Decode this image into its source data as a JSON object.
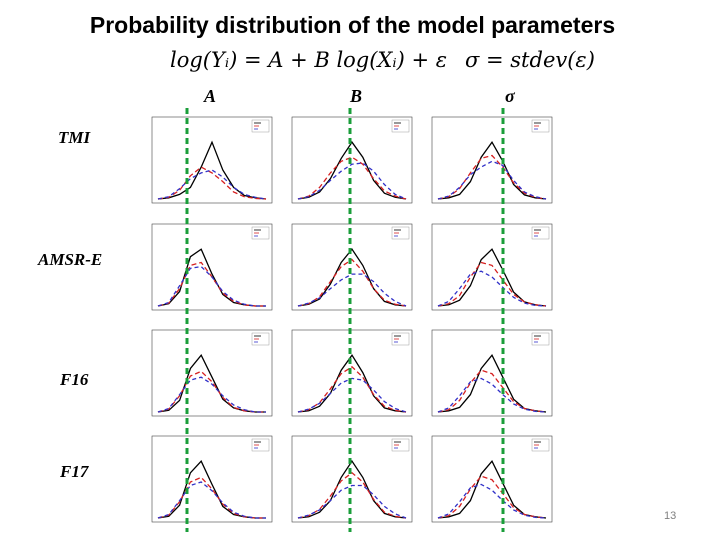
{
  "title": "Probability distribution of the model parameters",
  "formulas": {
    "model": "log(Yᵢ) = A + B log(Xᵢ) + ε",
    "sigma": "σ = stdev(ε)"
  },
  "columns": [
    "A",
    "B",
    "σ"
  ],
  "rows": [
    "TMI",
    "AMSR-E",
    "F16",
    "F17"
  ],
  "page_number": "13",
  "colors": {
    "series_black": "#000000",
    "series_red": "#d62020",
    "series_blue": "#3030c8",
    "reference_line": "#1a9e3a",
    "axis": "#444444"
  },
  "chart_data": {
    "type": "line",
    "note_layout": "4 rows x 3 columns of small distribution plots; each plot shows three density curves (black, red dashed, blue dashed); dashed green vertical line marks reference value across each column",
    "x": [
      0.0,
      0.1,
      0.2,
      0.3,
      0.4,
      0.5,
      0.6,
      0.7,
      0.8,
      0.9,
      1.0
    ],
    "panels": [
      {
        "row": "TMI",
        "column": "A",
        "series": [
          {
            "color": "black",
            "values": [
              0,
              0.02,
              0.08,
              0.2,
              0.55,
              0.98,
              0.5,
              0.2,
              0.06,
              0.02,
              0
            ]
          },
          {
            "color": "red",
            "values": [
              0,
              0.03,
              0.15,
              0.4,
              0.55,
              0.45,
              0.3,
              0.12,
              0.04,
              0.01,
              0
            ]
          },
          {
            "color": "blue",
            "values": [
              0,
              0.04,
              0.18,
              0.35,
              0.45,
              0.5,
              0.38,
              0.2,
              0.08,
              0.03,
              0
            ]
          }
        ]
      },
      {
        "row": "TMI",
        "column": "B",
        "series": [
          {
            "color": "black",
            "values": [
              0,
              0.03,
              0.12,
              0.35,
              0.7,
              0.98,
              0.72,
              0.32,
              0.1,
              0.03,
              0
            ]
          },
          {
            "color": "red",
            "values": [
              0,
              0.05,
              0.2,
              0.45,
              0.65,
              0.72,
              0.6,
              0.35,
              0.14,
              0.05,
              0
            ]
          },
          {
            "color": "blue",
            "values": [
              0,
              0.04,
              0.15,
              0.32,
              0.48,
              0.6,
              0.62,
              0.48,
              0.25,
              0.08,
              0
            ]
          }
        ]
      },
      {
        "row": "TMI",
        "column": "σ",
        "series": [
          {
            "color": "black",
            "values": [
              0,
              0.02,
              0.08,
              0.3,
              0.72,
              0.98,
              0.65,
              0.25,
              0.07,
              0.02,
              0
            ]
          },
          {
            "color": "red",
            "values": [
              0,
              0.04,
              0.18,
              0.45,
              0.7,
              0.75,
              0.55,
              0.28,
              0.1,
              0.03,
              0
            ]
          },
          {
            "color": "blue",
            "values": [
              0,
              0.05,
              0.2,
              0.42,
              0.55,
              0.65,
              0.58,
              0.32,
              0.12,
              0.04,
              0
            ]
          }
        ]
      },
      {
        "row": "AMSR-E",
        "column": "A",
        "series": [
          {
            "color": "black",
            "values": [
              0,
              0.04,
              0.25,
              0.85,
              0.98,
              0.55,
              0.2,
              0.06,
              0.02,
              0,
              0
            ]
          },
          {
            "color": "red",
            "values": [
              0,
              0.05,
              0.3,
              0.7,
              0.75,
              0.5,
              0.22,
              0.08,
              0.02,
              0,
              0
            ]
          },
          {
            "color": "blue",
            "values": [
              0,
              0.06,
              0.35,
              0.65,
              0.68,
              0.5,
              0.25,
              0.1,
              0.03,
              0,
              0
            ]
          }
        ]
      },
      {
        "row": "AMSR-E",
        "column": "B",
        "series": [
          {
            "color": "black",
            "values": [
              0,
              0.03,
              0.12,
              0.38,
              0.75,
              0.98,
              0.7,
              0.3,
              0.08,
              0.02,
              0
            ]
          },
          {
            "color": "red",
            "values": [
              0,
              0.04,
              0.16,
              0.42,
              0.68,
              0.8,
              0.6,
              0.3,
              0.1,
              0.03,
              0
            ]
          },
          {
            "color": "blue",
            "values": [
              0,
              0.05,
              0.14,
              0.3,
              0.45,
              0.55,
              0.55,
              0.42,
              0.22,
              0.08,
              0
            ]
          }
        ]
      },
      {
        "row": "AMSR-E",
        "column": "σ",
        "series": [
          {
            "color": "black",
            "values": [
              0,
              0.02,
              0.1,
              0.35,
              0.8,
              0.98,
              0.62,
              0.24,
              0.07,
              0.02,
              0
            ]
          },
          {
            "color": "red",
            "values": [
              0,
              0.04,
              0.18,
              0.5,
              0.75,
              0.7,
              0.45,
              0.2,
              0.07,
              0.02,
              0
            ]
          },
          {
            "color": "blue",
            "values": [
              0,
              0.08,
              0.3,
              0.55,
              0.6,
              0.5,
              0.32,
              0.15,
              0.05,
              0.01,
              0
            ]
          }
        ]
      },
      {
        "row": "F16",
        "column": "A",
        "series": [
          {
            "color": "black",
            "values": [
              0,
              0.03,
              0.2,
              0.75,
              0.98,
              0.6,
              0.22,
              0.07,
              0.02,
              0,
              0
            ]
          },
          {
            "color": "red",
            "values": [
              0,
              0.05,
              0.28,
              0.62,
              0.7,
              0.52,
              0.25,
              0.08,
              0.02,
              0,
              0
            ]
          },
          {
            "color": "blue",
            "values": [
              0,
              0.06,
              0.3,
              0.55,
              0.6,
              0.48,
              0.28,
              0.12,
              0.04,
              0,
              0
            ]
          }
        ]
      },
      {
        "row": "F16",
        "column": "B",
        "series": [
          {
            "color": "black",
            "values": [
              0,
              0.02,
              0.1,
              0.32,
              0.72,
              0.98,
              0.68,
              0.28,
              0.07,
              0.02,
              0
            ]
          },
          {
            "color": "red",
            "values": [
              0,
              0.04,
              0.16,
              0.4,
              0.66,
              0.78,
              0.6,
              0.3,
              0.1,
              0.03,
              0
            ]
          },
          {
            "color": "blue",
            "values": [
              0,
              0.05,
              0.15,
              0.32,
              0.5,
              0.58,
              0.55,
              0.38,
              0.18,
              0.06,
              0
            ]
          }
        ]
      },
      {
        "row": "F16",
        "column": "σ",
        "series": [
          {
            "color": "black",
            "values": [
              0,
              0.02,
              0.08,
              0.3,
              0.75,
              0.98,
              0.6,
              0.22,
              0.06,
              0.02,
              0
            ]
          },
          {
            "color": "red",
            "values": [
              0,
              0.04,
              0.2,
              0.5,
              0.72,
              0.66,
              0.42,
              0.18,
              0.06,
              0.02,
              0
            ]
          },
          {
            "color": "blue",
            "values": [
              0,
              0.07,
              0.28,
              0.52,
              0.58,
              0.48,
              0.3,
              0.14,
              0.05,
              0.01,
              0
            ]
          }
        ]
      },
      {
        "row": "F17",
        "column": "A",
        "series": [
          {
            "color": "black",
            "values": [
              0,
              0.03,
              0.22,
              0.78,
              0.98,
              0.58,
              0.2,
              0.06,
              0.02,
              0,
              0
            ]
          },
          {
            "color": "red",
            "values": [
              0,
              0.05,
              0.28,
              0.62,
              0.7,
              0.5,
              0.24,
              0.08,
              0.02,
              0,
              0
            ]
          },
          {
            "color": "blue",
            "values": [
              0,
              0.06,
              0.3,
              0.56,
              0.62,
              0.47,
              0.26,
              0.1,
              0.03,
              0,
              0
            ]
          }
        ]
      },
      {
        "row": "F17",
        "column": "B",
        "series": [
          {
            "color": "black",
            "values": [
              0,
              0.02,
              0.1,
              0.3,
              0.7,
              0.98,
              0.7,
              0.3,
              0.08,
              0.02,
              0
            ]
          },
          {
            "color": "red",
            "values": [
              0,
              0.04,
              0.15,
              0.38,
              0.64,
              0.78,
              0.62,
              0.32,
              0.1,
              0.03,
              0
            ]
          },
          {
            "color": "blue",
            "values": [
              0,
              0.05,
              0.14,
              0.3,
              0.48,
              0.56,
              0.56,
              0.4,
              0.2,
              0.07,
              0
            ]
          }
        ]
      },
      {
        "row": "F17",
        "column": "σ",
        "series": [
          {
            "color": "black",
            "values": [
              0,
              0.02,
              0.08,
              0.3,
              0.76,
              0.98,
              0.6,
              0.22,
              0.06,
              0.02,
              0
            ]
          },
          {
            "color": "red",
            "values": [
              0,
              0.04,
              0.2,
              0.5,
              0.72,
              0.66,
              0.42,
              0.18,
              0.06,
              0.02,
              0
            ]
          },
          {
            "color": "blue",
            "values": [
              0,
              0.07,
              0.28,
              0.52,
              0.58,
              0.48,
              0.3,
              0.14,
              0.05,
              0.01,
              0
            ]
          }
        ]
      }
    ]
  }
}
